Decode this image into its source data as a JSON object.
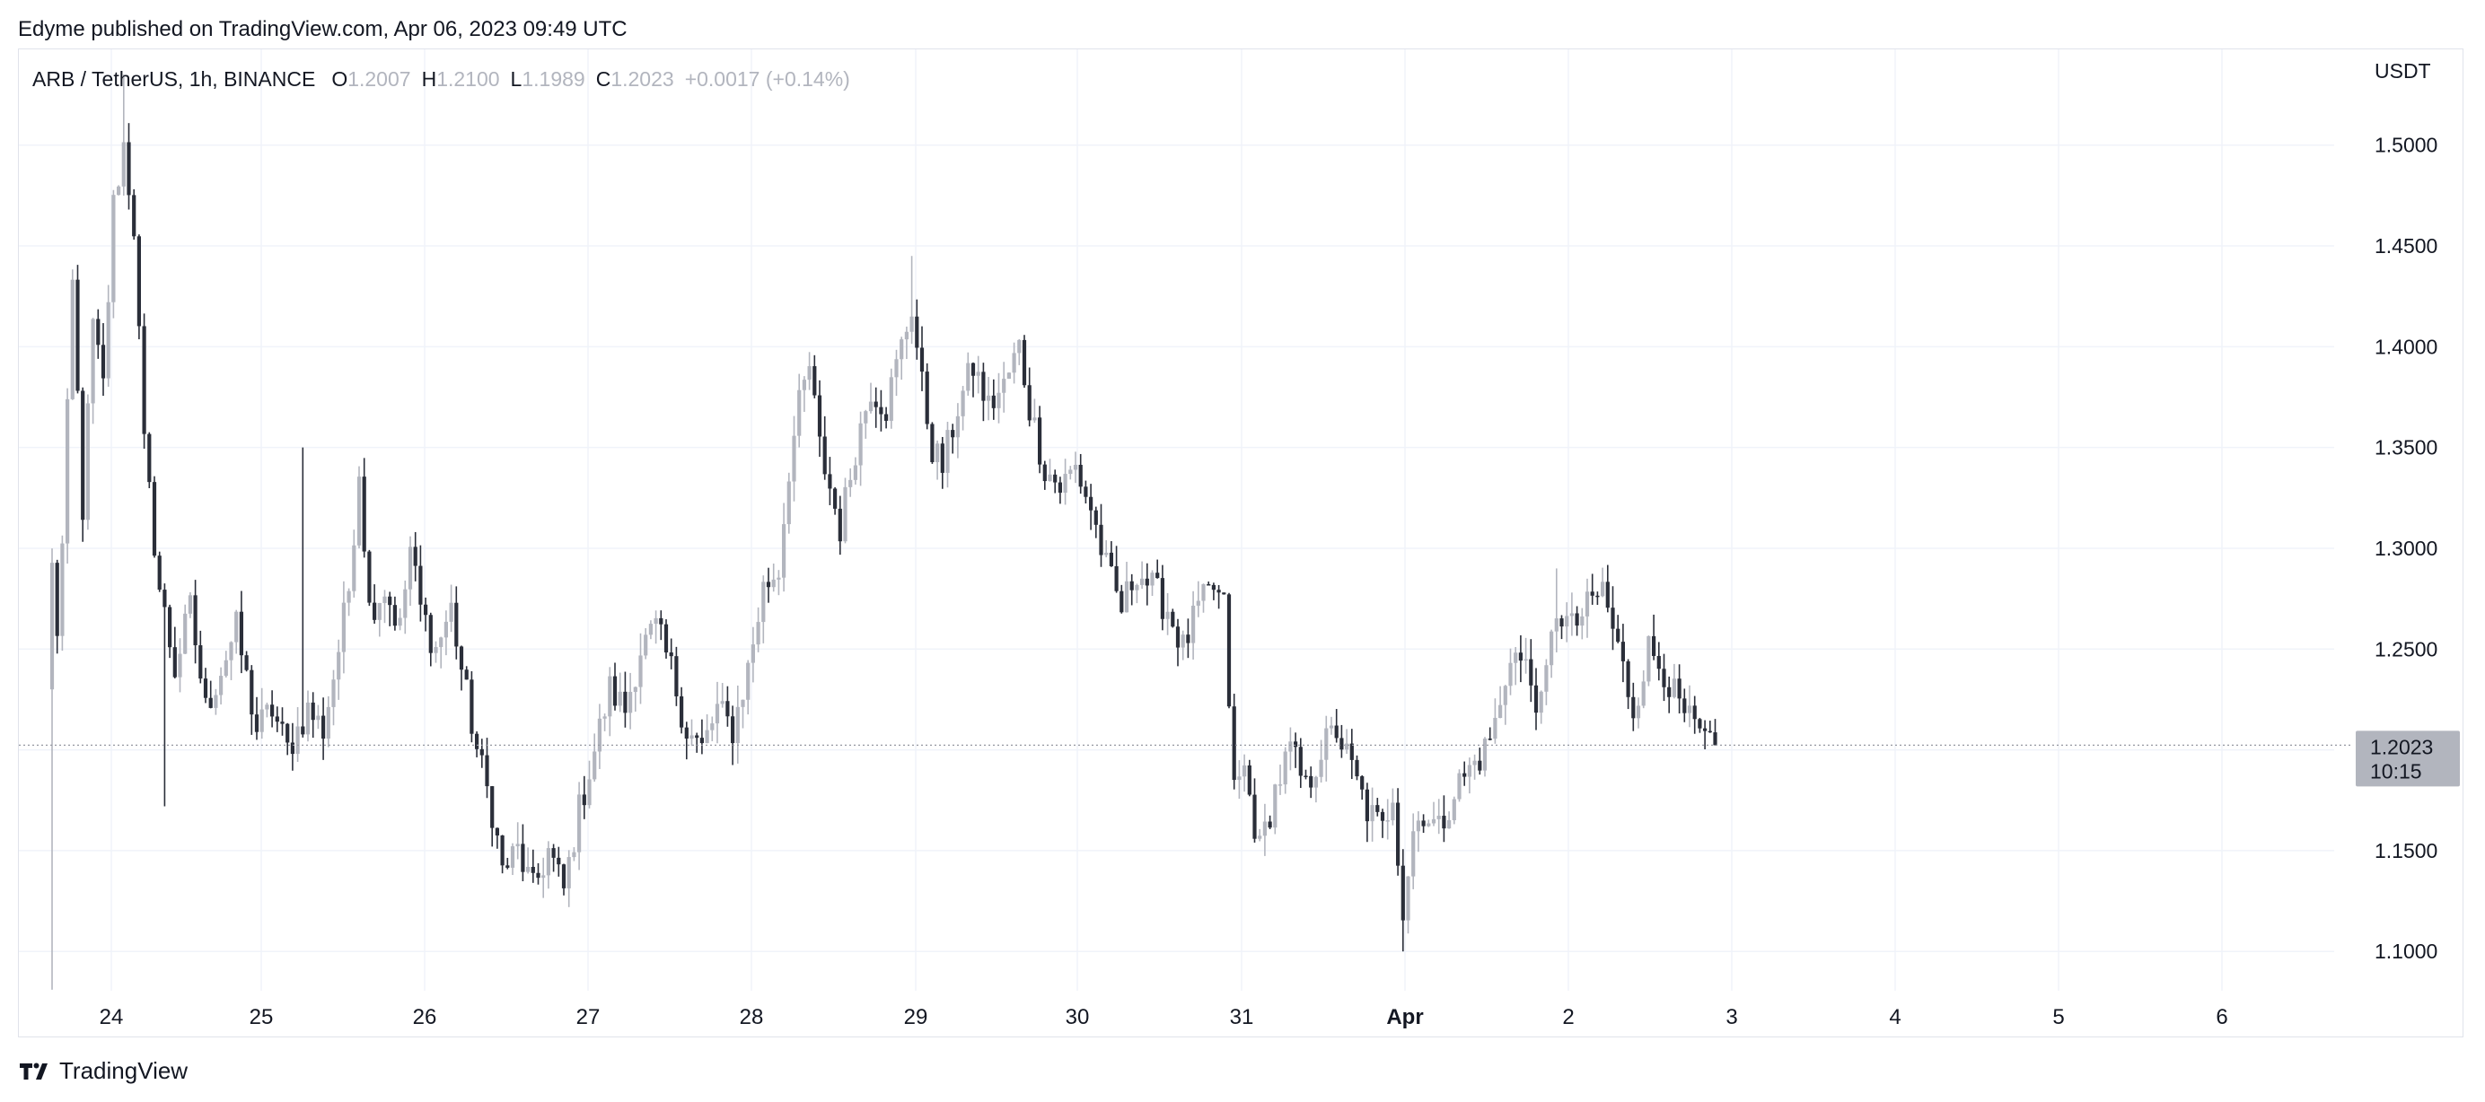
{
  "publisher_line": "Edyme published on TradingView.com, Apr 06, 2023 09:49 UTC",
  "brand": "TradingView",
  "legend": {
    "symbol": "ARB / TetherUS, 1h, BINANCE",
    "open_label": "O",
    "open": "1.2007",
    "high_label": "H",
    "high": "1.2100",
    "low_label": "L",
    "low": "1.1989",
    "close_label": "C",
    "close": "1.2023",
    "change": "+0.0017 (+0.14%)"
  },
  "price_tag": {
    "price": "1.2023",
    "countdown": "10:15"
  },
  "colors": {
    "up": "#b2b5be",
    "down": "#2a2e39",
    "grid": "#f0f3fa",
    "tag": "#b2b5be"
  },
  "chart_data": {
    "type": "candlestick",
    "symbol": "ARB / TetherUS",
    "interval": "1h",
    "exchange": "BINANCE",
    "y_axis_title": "USDT",
    "y_ticks": [
      "1.5000",
      "1.4500",
      "1.4000",
      "1.3500",
      "1.3000",
      "1.2500",
      "1.2000",
      "1.1500",
      "1.1000"
    ],
    "y_tick_values": [
      1.5,
      1.45,
      1.4,
      1.35,
      1.3,
      1.25,
      1.2,
      1.15,
      1.1
    ],
    "ylim": [
      1.0805,
      1.5475
    ],
    "x_ticks": [
      {
        "label": "24",
        "day": "2023-03-24",
        "bold": false
      },
      {
        "label": "25",
        "day": "2023-03-25",
        "bold": false
      },
      {
        "label": "26",
        "day": "2023-03-26",
        "bold": false
      },
      {
        "label": "27",
        "day": "2023-03-27",
        "bold": false
      },
      {
        "label": "28",
        "day": "2023-03-28",
        "bold": false
      },
      {
        "label": "29",
        "day": "2023-03-29",
        "bold": false
      },
      {
        "label": "30",
        "day": "2023-03-30",
        "bold": false
      },
      {
        "label": "31",
        "day": "2023-03-31",
        "bold": false
      },
      {
        "label": "Apr",
        "day": "2023-04-01",
        "bold": true
      },
      {
        "label": "2",
        "day": "2023-04-02",
        "bold": false
      },
      {
        "label": "3",
        "day": "2023-04-03",
        "bold": false
      },
      {
        "label": "4",
        "day": "2023-04-04",
        "bold": false
      },
      {
        "label": "5",
        "day": "2023-04-05",
        "bold": false
      },
      {
        "label": "6",
        "day": "2023-04-06",
        "bold": false
      }
    ],
    "grid": true,
    "current_price": 1.2023,
    "anchors": [
      [
        0,
        1.09,
        1.29
      ],
      [
        1,
        1.29,
        1.26
      ],
      [
        2,
        1.26,
        1.3
      ],
      [
        4,
        1.3,
        1.43
      ],
      [
        6,
        1.43,
        1.32
      ],
      [
        8,
        1.32,
        1.41
      ],
      [
        10,
        1.41,
        1.38
      ],
      [
        12,
        1.38,
        1.47
      ],
      [
        14,
        1.47,
        1.5
      ],
      [
        16,
        1.5,
        1.46
      ],
      [
        18,
        1.46,
        1.35
      ],
      [
        21,
        1.35,
        1.28
      ],
      [
        24,
        1.28,
        1.24
      ],
      [
        27,
        1.24,
        1.27
      ],
      [
        30,
        1.27,
        1.22
      ],
      [
        33,
        1.22,
        1.24
      ],
      [
        36,
        1.24,
        1.26
      ],
      [
        40,
        1.26,
        1.21
      ],
      [
        43,
        1.21,
        1.22
      ],
      [
        46,
        1.22,
        1.2
      ],
      [
        50,
        1.2,
        1.22
      ],
      [
        53,
        1.22,
        1.21
      ],
      [
        56,
        1.21,
        1.25
      ],
      [
        58,
        1.25,
        1.28
      ],
      [
        60,
        1.28,
        1.34
      ],
      [
        62,
        1.34,
        1.27
      ],
      [
        65,
        1.27,
        1.28
      ],
      [
        68,
        1.28,
        1.26
      ],
      [
        70,
        1.26,
        1.3
      ],
      [
        72,
        1.3,
        1.27
      ],
      [
        75,
        1.27,
        1.25
      ],
      [
        78,
        1.25,
        1.27
      ],
      [
        80,
        1.27,
        1.24
      ],
      [
        83,
        1.24,
        1.2
      ],
      [
        86,
        1.2,
        1.17
      ],
      [
        88,
        1.17,
        1.14
      ],
      [
        91,
        1.14,
        1.15
      ],
      [
        94,
        1.15,
        1.13
      ],
      [
        97,
        1.13,
        1.15
      ],
      [
        100,
        1.15,
        1.13
      ],
      [
        103,
        1.13,
        1.17
      ],
      [
        106,
        1.17,
        1.2
      ],
      [
        109,
        1.2,
        1.23
      ],
      [
        112,
        1.23,
        1.22
      ],
      [
        115,
        1.22,
        1.25
      ],
      [
        118,
        1.25,
        1.26
      ],
      [
        121,
        1.26,
        1.24
      ],
      [
        124,
        1.24,
        1.21
      ],
      [
        127,
        1.21,
        1.2
      ],
      [
        130,
        1.2,
        1.22
      ],
      [
        133,
        1.22,
        1.21
      ],
      [
        136,
        1.21,
        1.24
      ],
      [
        139,
        1.24,
        1.28
      ],
      [
        142,
        1.28,
        1.29
      ],
      [
        144,
        1.29,
        1.34
      ],
      [
        146,
        1.34,
        1.37
      ],
      [
        148,
        1.37,
        1.39
      ],
      [
        150,
        1.39,
        1.35
      ],
      [
        152,
        1.35,
        1.33
      ],
      [
        154,
        1.33,
        1.31
      ],
      [
        157,
        1.31,
        1.35
      ],
      [
        160,
        1.35,
        1.38
      ],
      [
        163,
        1.38,
        1.37
      ],
      [
        166,
        1.37,
        1.4
      ],
      [
        168,
        1.4,
        1.42
      ],
      [
        170,
        1.42,
        1.38
      ],
      [
        172,
        1.38,
        1.35
      ],
      [
        174,
        1.35,
        1.34
      ],
      [
        177,
        1.34,
        1.37
      ],
      [
        180,
        1.37,
        1.39
      ],
      [
        183,
        1.39,
        1.37
      ],
      [
        186,
        1.37,
        1.38
      ],
      [
        189,
        1.38,
        1.4
      ],
      [
        191,
        1.4,
        1.37
      ],
      [
        194,
        1.37,
        1.34
      ],
      [
        197,
        1.34,
        1.33
      ],
      [
        200,
        1.33,
        1.34
      ],
      [
        203,
        1.34,
        1.32
      ],
      [
        206,
        1.32,
        1.29
      ],
      [
        209,
        1.29,
        1.27
      ],
      [
        212,
        1.27,
        1.29
      ],
      [
        215,
        1.29,
        1.28
      ],
      [
        218,
        1.28,
        1.27
      ],
      [
        221,
        1.27,
        1.25
      ],
      [
        224,
        1.25,
        1.27
      ],
      [
        227,
        1.27,
        1.28
      ],
      [
        229,
        1.28,
        1.27
      ],
      [
        231,
        1.27,
        1.18
      ],
      [
        233,
        1.18,
        1.19
      ],
      [
        236,
        1.19,
        1.15
      ],
      [
        239,
        1.15,
        1.18
      ],
      [
        242,
        1.18,
        1.2
      ],
      [
        245,
        1.2,
        1.18
      ],
      [
        248,
        1.18,
        1.2
      ],
      [
        251,
        1.2,
        1.21
      ],
      [
        254,
        1.21,
        1.19
      ],
      [
        257,
        1.19,
        1.17
      ],
      [
        260,
        1.17,
        1.16
      ],
      [
        262,
        1.16,
        1.18
      ],
      [
        264,
        1.18,
        1.12
      ],
      [
        266,
        1.12,
        1.16
      ],
      [
        268,
        1.16,
        1.17
      ],
      [
        271,
        1.17,
        1.16
      ],
      [
        274,
        1.16,
        1.18
      ],
      [
        277,
        1.18,
        1.19
      ],
      [
        280,
        1.19,
        1.2
      ],
      [
        283,
        1.2,
        1.22
      ],
      [
        285,
        1.22,
        1.25
      ],
      [
        288,
        1.25,
        1.24
      ],
      [
        291,
        1.24,
        1.22
      ],
      [
        294,
        1.22,
        1.27
      ],
      [
        297,
        1.27,
        1.26
      ],
      [
        300,
        1.26,
        1.27
      ],
      [
        303,
        1.27,
        1.28
      ],
      [
        306,
        1.28,
        1.25
      ],
      [
        309,
        1.25,
        1.22
      ],
      [
        312,
        1.22,
        1.25
      ],
      [
        315,
        1.25,
        1.24
      ],
      [
        318,
        1.24,
        1.22
      ],
      [
        321,
        1.22,
        1.21
      ],
      [
        324,
        1.21,
        1.2
      ],
      [
        325,
        1.2,
        1.2023
      ]
    ]
  }
}
